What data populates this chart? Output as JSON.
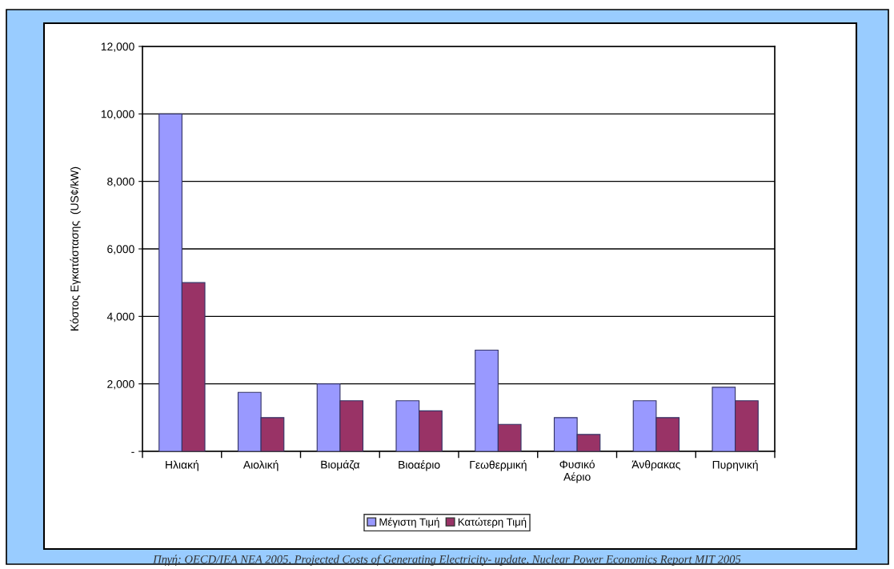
{
  "chart_data": {
    "type": "bar",
    "ylabel": "Κόστος Εγκατάστασης  (US¢/kW)",
    "categories": [
      "Ηλιακή",
      "Αιολική",
      "Βιομάζα",
      "Βιοαέριο",
      "Γεωθερμική",
      "Φυσικό\nΑέριο",
      "Άνθρακας",
      "Πυρηνική"
    ],
    "series": [
      {
        "name": "Μέγιστη Τιμή",
        "color": "#9999ff",
        "values": [
          10000,
          1750,
          2000,
          1500,
          3000,
          1000,
          1500,
          1900
        ]
      },
      {
        "name": "Κατώτερη Τιμή",
        "color": "#993366",
        "values": [
          5000,
          1000,
          1500,
          1200,
          800,
          500,
          1000,
          1500
        ]
      }
    ],
    "ylim": [
      0,
      12000
    ],
    "yticks": [
      {
        "value": 0,
        "label": "-"
      },
      {
        "value": 2000,
        "label": "2,000"
      },
      {
        "value": 4000,
        "label": "4,000"
      },
      {
        "value": 6000,
        "label": "6,000"
      },
      {
        "value": 8000,
        "label": "8,000"
      },
      {
        "value": 10000,
        "label": "10,000"
      },
      {
        "value": 12000,
        "label": "12,000"
      }
    ],
    "grid": "y",
    "legend": "bottom",
    "annotations": [
      "Πηγή: OECD/IEA NEA 2005, Projected Costs of Generating Electricity- update, Nuclear Power Economics Report MIT 2005"
    ]
  }
}
